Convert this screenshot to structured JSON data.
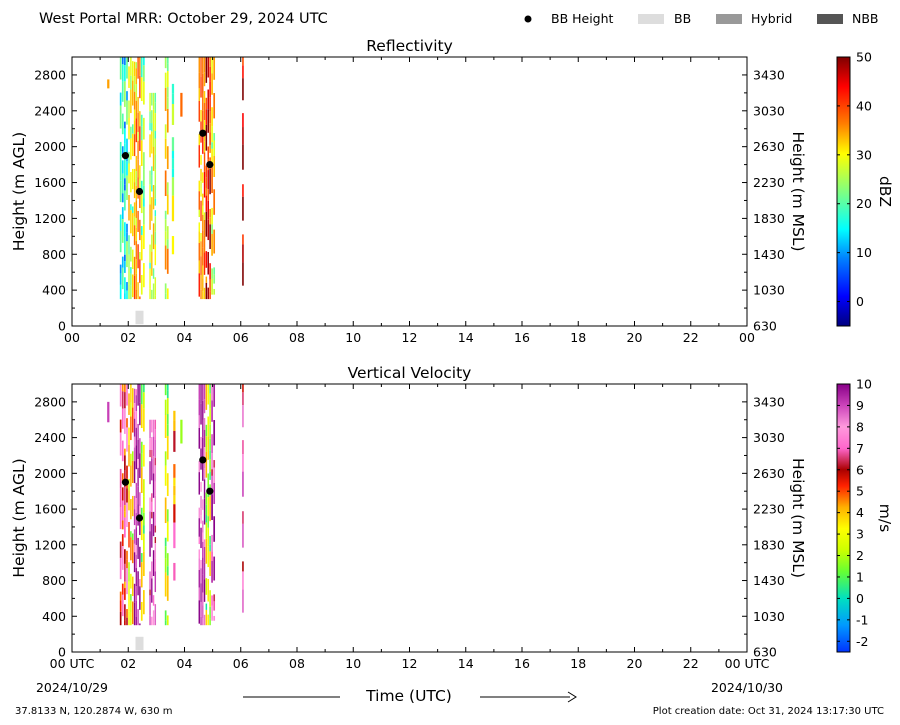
{
  "header": {
    "title": "West Portal MRR:  October 29, 2024 UTC",
    "legend": [
      {
        "label": "BB Height",
        "marker": "dot",
        "color": "#000000"
      },
      {
        "label": "BB",
        "marker": "swatch",
        "color": "#dddddd"
      },
      {
        "label": "Hybrid",
        "marker": "swatch",
        "color": "#999999"
      },
      {
        "label": "NBB",
        "marker": "swatch",
        "color": "#555555"
      }
    ]
  },
  "x_axis": {
    "label": "Time (UTC)",
    "ticks": [
      "00 UTC",
      "02",
      "04",
      "06",
      "08",
      "10",
      "12",
      "14",
      "16",
      "18",
      "20",
      "22",
      "00 UTC"
    ],
    "range_hours": [
      0,
      24
    ],
    "start_date": "2024/10/29",
    "end_date": "2024/10/30"
  },
  "footer": {
    "location": "37.8133 N, 120.2874 W, 630 m",
    "creation_date": "Plot creation date: Oct 31, 2024 13:17:30 UTC"
  },
  "chart_data": [
    {
      "type": "heatmap",
      "title": "Reflectivity",
      "ylabel": "Height (m AGL)",
      "ylabel_right": "Height (m MSL)",
      "ylim": [
        0,
        3000
      ],
      "yticks": [
        0,
        400,
        800,
        1200,
        1600,
        2000,
        2400,
        2800
      ],
      "yticks_right": [
        "630",
        "1030",
        "1430",
        "1830",
        "2230",
        "2630",
        "3030",
        "3430"
      ],
      "x_tick_labels": [
        "00",
        "02",
        "04",
        "06",
        "08",
        "10",
        "12",
        "14",
        "16",
        "18",
        "20",
        "22",
        "00"
      ],
      "colorbar": {
        "label": "dBZ",
        "range": [
          -5,
          50
        ],
        "ticks": [
          "0",
          "10",
          "20",
          "30",
          "40",
          "50"
        ],
        "tick_values": [
          0,
          10,
          20,
          30,
          40,
          50
        ],
        "colormap": "jet"
      },
      "bb_height_points": [
        {
          "time": 1.9,
          "height": 1900
        },
        {
          "time": 2.4,
          "height": 1500
        },
        {
          "time": 4.65,
          "height": 2150
        },
        {
          "time": 4.9,
          "height": 1800
        }
      ],
      "bb_type_bars": [
        {
          "time": 2.4,
          "type": "BB"
        }
      ],
      "echo_columns": [
        {
          "t0": 1.25,
          "t1": 1.35,
          "h0": 2650,
          "h1": 2750,
          "value": 30
        },
        {
          "t0": 1.7,
          "t1": 2.0,
          "h0": 300,
          "h1": 3000,
          "value": 15
        },
        {
          "t0": 2.0,
          "t1": 2.2,
          "h0": 300,
          "h1": 3000,
          "value": 25
        },
        {
          "t0": 2.2,
          "t1": 2.45,
          "h0": 300,
          "h1": 3000,
          "value": 33
        },
        {
          "t0": 2.45,
          "t1": 2.6,
          "h0": 350,
          "h1": 3000,
          "value": 22
        },
        {
          "t0": 2.75,
          "t1": 3.0,
          "h0": 300,
          "h1": 2600,
          "value": 25
        },
        {
          "t0": 3.3,
          "t1": 3.45,
          "h0": 300,
          "h1": 3000,
          "value": 28
        },
        {
          "t0": 3.55,
          "t1": 3.65,
          "h0": 800,
          "h1": 2700,
          "value": 22
        },
        {
          "t0": 3.85,
          "t1": 3.95,
          "h0": 2200,
          "h1": 2600,
          "value": 30
        },
        {
          "t0": 4.5,
          "t1": 4.75,
          "h0": 300,
          "h1": 3000,
          "value": 35
        },
        {
          "t0": 4.75,
          "t1": 4.95,
          "h0": 300,
          "h1": 3000,
          "value": 42
        },
        {
          "t0": 4.95,
          "t1": 5.1,
          "h0": 350,
          "h1": 3000,
          "value": 28
        },
        {
          "t0": 6.05,
          "t1": 6.12,
          "h0": 350,
          "h1": 3000,
          "value": 45
        }
      ]
    },
    {
      "type": "heatmap",
      "title": "Vertical Velocity",
      "ylabel": "Height (m AGL)",
      "ylabel_right": "Height (m MSL)",
      "ylim": [
        0,
        3000
      ],
      "yticks": [
        0,
        400,
        800,
        1200,
        1600,
        2000,
        2400,
        2800
      ],
      "yticks_right": [
        "630",
        "1030",
        "1430",
        "1830",
        "2230",
        "2630",
        "3030",
        "3430"
      ],
      "x_tick_labels": [
        "00 UTC",
        "02",
        "04",
        "06",
        "08",
        "10",
        "12",
        "14",
        "16",
        "18",
        "20",
        "22",
        "00 UTC"
      ],
      "colorbar": {
        "label": "m/s",
        "range": [
          -2.5,
          10
        ],
        "ticks": [
          "-2",
          "-1",
          "0",
          "1",
          "2",
          "3",
          "4",
          "5",
          "6",
          "7",
          "8",
          "9",
          "10"
        ],
        "tick_values": [
          -2,
          -1,
          0,
          1,
          2,
          3,
          4,
          5,
          6,
          7,
          8,
          9,
          10
        ],
        "colormap": "velocity"
      },
      "bb_height_points": [
        {
          "time": 1.9,
          "height": 1900
        },
        {
          "time": 2.4,
          "height": 1500
        },
        {
          "time": 4.65,
          "height": 2150
        },
        {
          "time": 4.9,
          "height": 1800
        }
      ],
      "bb_type_bars": [
        {
          "time": 2.4,
          "type": "BB"
        }
      ],
      "echo_columns": [
        {
          "t0": 1.25,
          "t1": 1.35,
          "h0": 2500,
          "h1": 2800,
          "value": 8
        },
        {
          "t0": 1.7,
          "t1": 2.0,
          "h0": 300,
          "h1": 3000,
          "value": 6
        },
        {
          "t0": 2.0,
          "t1": 2.2,
          "h0": 300,
          "h1": 3000,
          "value": 3
        },
        {
          "t0": 2.2,
          "t1": 2.45,
          "h0": 300,
          "h1": 3000,
          "value": 9
        },
        {
          "t0": 2.45,
          "t1": 2.6,
          "h0": 350,
          "h1": 3000,
          "value": 2
        },
        {
          "t0": 2.75,
          "t1": 3.0,
          "h0": 300,
          "h1": 2600,
          "value": 8
        },
        {
          "t0": 3.3,
          "t1": 3.45,
          "h0": 300,
          "h1": 3000,
          "value": 2
        },
        {
          "t0": 3.6,
          "t1": 3.7,
          "h0": 800,
          "h1": 2700,
          "value": 5
        },
        {
          "t0": 3.85,
          "t1": 3.95,
          "h0": 2200,
          "h1": 2600,
          "value": 0
        },
        {
          "t0": 4.5,
          "t1": 4.75,
          "h0": 300,
          "h1": 3000,
          "value": 9
        },
        {
          "t0": 4.75,
          "t1": 4.95,
          "h0": 300,
          "h1": 3000,
          "value": 2
        },
        {
          "t0": 4.95,
          "t1": 5.1,
          "h0": 350,
          "h1": 3000,
          "value": 8
        },
        {
          "t0": 6.05,
          "t1": 6.12,
          "h0": 350,
          "h1": 3000,
          "value": 7
        }
      ]
    }
  ]
}
